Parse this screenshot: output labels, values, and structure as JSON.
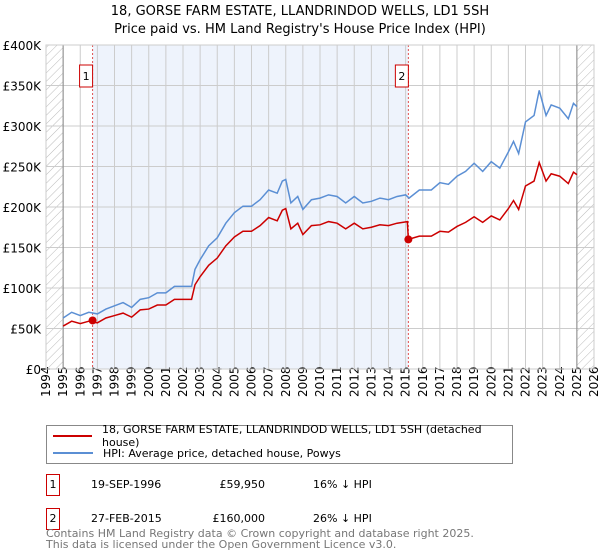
{
  "title": "18, GORSE FARM ESTATE, LLANDRINDOD WELLS, LD1 5SH",
  "subtitle": "Price paid vs. HM Land Registry's House Price Index (HPI)",
  "chart_data": {
    "type": "line",
    "title": "18, GORSE FARM ESTATE, LLANDRINDOD WELLS, LD1 5SH",
    "subtitle": "Price paid vs. HM Land Registry's House Price Index (HPI)",
    "xlim": [
      1994,
      2026
    ],
    "ylim": [
      0,
      400000
    ],
    "x_ticks": [
      "1994",
      "1995",
      "1996",
      "1997",
      "1998",
      "1999",
      "2000",
      "2001",
      "2002",
      "2003",
      "2004",
      "2005",
      "2006",
      "2007",
      "2008",
      "2009",
      "2010",
      "2011",
      "2012",
      "2013",
      "2014",
      "2015",
      "2016",
      "2017",
      "2018",
      "2019",
      "2020",
      "2021",
      "2022",
      "2023",
      "2024",
      "2025",
      "2026"
    ],
    "y_ticks": [
      {
        "v": 0,
        "label": "£0"
      },
      {
        "v": 50000,
        "label": "£50K"
      },
      {
        "v": 100000,
        "label": "£100K"
      },
      {
        "v": 150000,
        "label": "£150K"
      },
      {
        "v": 200000,
        "label": "£200K"
      },
      {
        "v": 250000,
        "label": "£250K"
      },
      {
        "v": 300000,
        "label": "£300K"
      },
      {
        "v": 350000,
        "label": "£350K"
      },
      {
        "v": 400000,
        "label": "£400K"
      }
    ],
    "grid": true,
    "data_range": [
      1995,
      2025
    ],
    "series": [
      {
        "name": "18, GORSE FARM ESTATE, LLANDRINDOD WELLS, LD1 5SH (detached house)",
        "color": "#cc0000",
        "x": [
          1995,
          1995.5,
          1996,
          1996.5,
          1997,
          1997.5,
          1998,
          1998.5,
          1999,
          1999.5,
          2000,
          2000.5,
          2001,
          2001.5,
          2002,
          2002.5,
          2002.7,
          2003,
          2003.5,
          2004,
          2004.5,
          2005,
          2005.5,
          2006,
          2006.5,
          2007,
          2007.5,
          2007.8,
          2008,
          2008.3,
          2008.7,
          2009,
          2009.5,
          2010,
          2010.5,
          2011,
          2011.5,
          2012,
          2012.5,
          2013,
          2013.5,
          2014,
          2014.5,
          2015.1,
          2015.16,
          2015.8,
          2016.5,
          2017,
          2017.5,
          2018,
          2018.5,
          2019,
          2019.5,
          2020,
          2020.5,
          2021,
          2021.3,
          2021.6,
          2022,
          2022.5,
          2022.8,
          2023.2,
          2023.5,
          2024,
          2024.5,
          2024.8,
          2025
        ],
        "y": [
          53000,
          59000,
          56000,
          59000,
          57000,
          63000,
          66000,
          69000,
          64000,
          73000,
          74000,
          79000,
          79000,
          86000,
          86000,
          86000,
          104000,
          114000,
          128000,
          137000,
          152000,
          163000,
          170000,
          170000,
          177000,
          187000,
          183000,
          196000,
          198000,
          173000,
          180000,
          166000,
          177000,
          178000,
          182000,
          180000,
          173000,
          180000,
          173000,
          175000,
          178000,
          177000,
          180000,
          182000,
          160000,
          164000,
          164000,
          170000,
          169000,
          176000,
          181000,
          188000,
          181000,
          189000,
          184000,
          198000,
          208000,
          197000,
          226000,
          232000,
          255000,
          232000,
          241000,
          238000,
          229000,
          243000,
          240000
        ]
      },
      {
        "name": "HPI: Average price, detached house, Powys",
        "color": "#5b8fd4",
        "x": [
          1995,
          1995.5,
          1996,
          1996.5,
          1997,
          1997.5,
          1998,
          1998.5,
          1999,
          1999.5,
          2000,
          2000.5,
          2001,
          2001.5,
          2002,
          2002.5,
          2002.7,
          2003,
          2003.5,
          2004,
          2004.5,
          2005,
          2005.5,
          2006,
          2006.5,
          2007,
          2007.5,
          2007.8,
          2008,
          2008.3,
          2008.7,
          2009,
          2009.5,
          2010,
          2010.5,
          2011,
          2011.5,
          2012,
          2012.5,
          2013,
          2013.5,
          2014,
          2014.5,
          2015,
          2015.2,
          2015.8,
          2016.5,
          2017,
          2017.5,
          2018,
          2018.5,
          2019,
          2019.5,
          2020,
          2020.5,
          2021,
          2021.3,
          2021.6,
          2022,
          2022.5,
          2022.8,
          2023.2,
          2023.5,
          2024,
          2024.5,
          2024.8,
          2025
        ],
        "y": [
          63000,
          70000,
          66000,
          70000,
          68000,
          74000,
          78000,
          82000,
          76000,
          86000,
          88000,
          94000,
          94000,
          102000,
          102000,
          102000,
          123000,
          135000,
          152000,
          162000,
          180000,
          193000,
          201000,
          201000,
          209000,
          221000,
          217000,
          232000,
          234000,
          205000,
          213000,
          197000,
          209000,
          211000,
          215000,
          213000,
          205000,
          213000,
          205000,
          207000,
          211000,
          209000,
          213000,
          215000,
          211000,
          221000,
          221000,
          230000,
          228000,
          238000,
          244000,
          254000,
          244000,
          256000,
          248000,
          268000,
          281000,
          266000,
          305000,
          313000,
          344000,
          313000,
          326000,
          322000,
          309000,
          328000,
          324000
        ]
      }
    ],
    "sales": [
      {
        "label": "1",
        "x": 1996.72,
        "y": 59950
      },
      {
        "label": "2",
        "x": 2015.16,
        "y": 160000
      }
    ],
    "legend_position": "below"
  },
  "legend": [
    {
      "label": "18, GORSE FARM ESTATE, LLANDRINDOD WELLS, LD1 5SH (detached house)",
      "color": "#cc0000"
    },
    {
      "label": "HPI: Average price, detached house, Powys",
      "color": "#5b8fd4"
    }
  ],
  "transactions": [
    {
      "num": "1",
      "date": "19-SEP-1996",
      "price": "£59,950",
      "hpi": "16% ↓ HPI"
    },
    {
      "num": "2",
      "date": "27-FEB-2015",
      "price": "£160,000",
      "hpi": "26% ↓ HPI"
    }
  ],
  "footer": [
    "Contains HM Land Registry data © Crown copyright and database right 2025.",
    "This data is licensed under the Open Government Licence v3.0."
  ]
}
